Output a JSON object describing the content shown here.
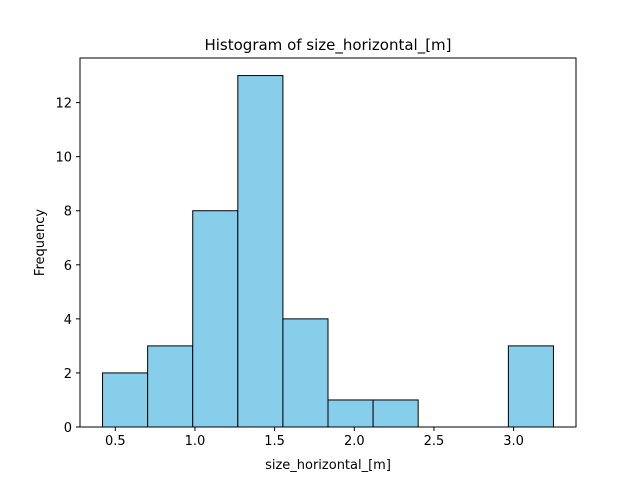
{
  "chart_data": {
    "type": "bar",
    "title": "Histogram of size_horizontal_[m]",
    "xlabel": "size_horizontal_[m]",
    "ylabel": "Frequency",
    "bin_edges": [
      0.42,
      0.703,
      0.986,
      1.269,
      1.552,
      1.835,
      2.118,
      2.401,
      2.684,
      2.967,
      3.25
    ],
    "values": [
      2,
      3,
      8,
      13,
      4,
      1,
      1,
      0,
      0,
      3
    ],
    "xlim": [
      0.2785,
      3.3915
    ],
    "ylim": [
      0,
      13.65
    ],
    "xticks": [
      0.5,
      1.0,
      1.5,
      2.0,
      2.5,
      3.0
    ],
    "xtick_labels": [
      "0.5",
      "1.0",
      "1.5",
      "2.0",
      "2.5",
      "3.0"
    ],
    "yticks": [
      0,
      2,
      4,
      6,
      8,
      10,
      12
    ],
    "ytick_labels": [
      "0",
      "2",
      "4",
      "6",
      "8",
      "10",
      "12"
    ],
    "grid": false,
    "bar_color": "#87ceeb",
    "edge_color": "#000000"
  }
}
